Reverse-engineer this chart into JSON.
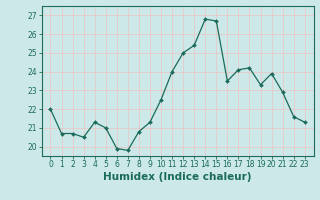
{
  "xlabel": "Humidex (Indice chaleur)",
  "x": [
    0,
    1,
    2,
    3,
    4,
    5,
    6,
    7,
    8,
    9,
    10,
    11,
    12,
    13,
    14,
    15,
    16,
    17,
    18,
    19,
    20,
    21,
    22,
    23
  ],
  "y": [
    22.0,
    20.7,
    20.7,
    20.5,
    21.3,
    21.0,
    19.9,
    19.8,
    20.8,
    21.3,
    22.5,
    24.0,
    25.0,
    25.4,
    26.8,
    26.7,
    23.5,
    24.1,
    24.2,
    23.3,
    23.9,
    22.9,
    21.6,
    21.3
  ],
  "line_color": "#1a6b5a",
  "marker": "D",
  "marker_size": 2.0,
  "line_width": 0.9,
  "bg_color": "#cce8e8",
  "grid_color": "#e8c8c8",
  "ylim": [
    19.5,
    27.5
  ],
  "yticks": [
    20,
    21,
    22,
    23,
    24,
    25,
    26,
    27
  ],
  "xticks": [
    0,
    1,
    2,
    3,
    4,
    5,
    6,
    7,
    8,
    9,
    10,
    11,
    12,
    13,
    14,
    15,
    16,
    17,
    18,
    19,
    20,
    21,
    22,
    23
  ],
  "tick_label_fontsize": 5.5,
  "xlabel_fontsize": 7.5,
  "axis_color": "#1a6b5a",
  "spine_color": "#1a6b5a"
}
